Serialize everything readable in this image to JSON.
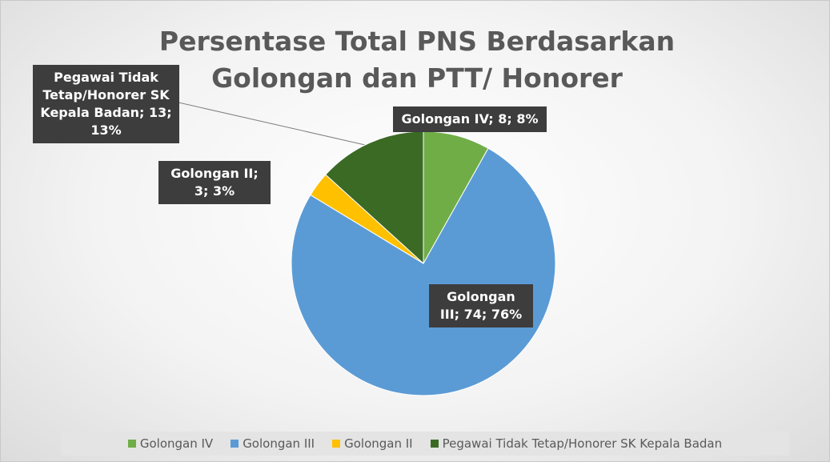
{
  "chart_data": {
    "type": "pie",
    "title": "Persentase Total PNS Berdasarkan Golongan dan PTT/ Honorer",
    "categories": [
      "Golongan IV",
      "Golongan III",
      "Golongan II",
      "Pegawai Tidak Tetap/Honorer SK Kepala Badan"
    ],
    "values": [
      8,
      74,
      3,
      13
    ],
    "value_labels": [
      "Golongan IV; 8; 8%",
      "Golongan III; 74; 76%",
      "Golongan II; 3; 3%",
      "Pegawai Tidak Tetap/Honorer SK Kepala Badan; 13; 13%"
    ],
    "colors": [
      "#70ad47",
      "#5b9bd5",
      "#ffc000",
      "#3b6a25"
    ],
    "legend": "bottom"
  }
}
